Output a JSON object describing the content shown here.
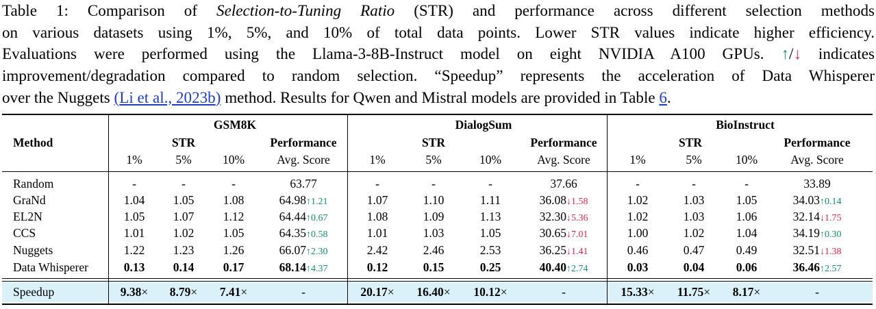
{
  "caption": {
    "line1_a": "Table 1: Comparison of ",
    "line1_em": "Selection-to-Tuning Ratio",
    "line1_b": " (STR) and performance across different selection methods",
    "line2": "on various datasets using 1%, 5%, and 10% of total data points.  Lower STR values indicate higher efficiency.",
    "line3_a": "Evaluations were performed using the Llama-3-8B-Instruct model on eight NVIDIA A100 GPUs. ",
    "line3_up": "↑",
    "line3_slash": "/",
    "line3_down": "↓",
    "line3_b": " indicates",
    "line4": "improvement/degradation compared to random selection. “Speedup” represents the acceleration of Data Whisperer",
    "line5_a": "over the Nuggets ",
    "line5_paren_open": "(",
    "line5_cite": "Li et al., 2023b",
    "line5_paren_close": ")",
    "line5_b": " method. Results for Qwen and Mistral models are provided in Table ",
    "line5_ref": "6",
    "line5_c": "."
  },
  "colors": {
    "up": "#1a8a6a",
    "down": "#d6284a",
    "link": "#1f3fbf",
    "highlight": "#daf1f9"
  },
  "table": {
    "method_header": "Method",
    "datasets": [
      "GSM8K",
      "DialogSum",
      "BioInstruct"
    ],
    "str_label": "STR",
    "perf_label": "Performance",
    "sub_headers": [
      "1%",
      "5%",
      "10%",
      "Avg. Score"
    ],
    "rows": [
      {
        "method": "Random",
        "bold": false,
        "cells": [
          [
            "-",
            "-",
            "-",
            "63.77",
            ""
          ],
          [
            "-",
            "-",
            "-",
            "37.66",
            ""
          ],
          [
            "-",
            "-",
            "-",
            "33.89",
            ""
          ]
        ],
        "dir": [
          "",
          "",
          ""
        ]
      },
      {
        "method": "GraNd",
        "bold": false,
        "cells": [
          [
            "1.04",
            "1.05",
            "1.08",
            "64.98",
            "↑1.21"
          ],
          [
            "1.07",
            "1.10",
            "1.11",
            "36.08",
            "↓1.58"
          ],
          [
            "1.02",
            "1.03",
            "1.05",
            "34.03",
            "↑0.14"
          ]
        ],
        "dir": [
          "up",
          "down",
          "up"
        ]
      },
      {
        "method": "EL2N",
        "bold": false,
        "cells": [
          [
            "1.05",
            "1.07",
            "1.12",
            "64.44",
            "↑0.67"
          ],
          [
            "1.08",
            "1.09",
            "1.13",
            "32.30",
            "↓5.36"
          ],
          [
            "1.02",
            "1.03",
            "1.06",
            "32.14",
            "↓1.75"
          ]
        ],
        "dir": [
          "up",
          "down",
          "down"
        ]
      },
      {
        "method": "CCS",
        "bold": false,
        "cells": [
          [
            "1.01",
            "1.02",
            "1.05",
            "64.35",
            "↑0.58"
          ],
          [
            "1.01",
            "1.03",
            "1.05",
            "30.65",
            "↓7.01"
          ],
          [
            "1.00",
            "1.02",
            "1.04",
            "34.19",
            "↑0.30"
          ]
        ],
        "dir": [
          "up",
          "down",
          "up"
        ]
      },
      {
        "method": "Nuggets",
        "bold": false,
        "cells": [
          [
            "1.22",
            "1.23",
            "1.26",
            "66.07",
            "↑2.30"
          ],
          [
            "2.42",
            "2.46",
            "2.53",
            "36.25",
            "↓1.41"
          ],
          [
            "0.46",
            "0.47",
            "0.49",
            "32.51",
            "↓1.38"
          ]
        ],
        "dir": [
          "up",
          "down",
          "down"
        ]
      },
      {
        "method": "Data Whisperer",
        "bold": true,
        "cells": [
          [
            "0.13",
            "0.14",
            "0.17",
            "68.14",
            "↑4.37"
          ],
          [
            "0.12",
            "0.15",
            "0.25",
            "40.40",
            "↑2.74"
          ],
          [
            "0.03",
            "0.04",
            "0.06",
            "36.46",
            "↑2.57"
          ]
        ],
        "dir": [
          "up",
          "up",
          "up"
        ]
      }
    ],
    "speedup": {
      "label": "Speedup",
      "cells": [
        [
          "9.38",
          "8.79",
          "7.41",
          "-"
        ],
        [
          "20.17",
          "16.40",
          "10.12",
          "-"
        ],
        [
          "15.33",
          "11.75",
          "8.17",
          "-"
        ]
      ],
      "times": "×"
    }
  }
}
